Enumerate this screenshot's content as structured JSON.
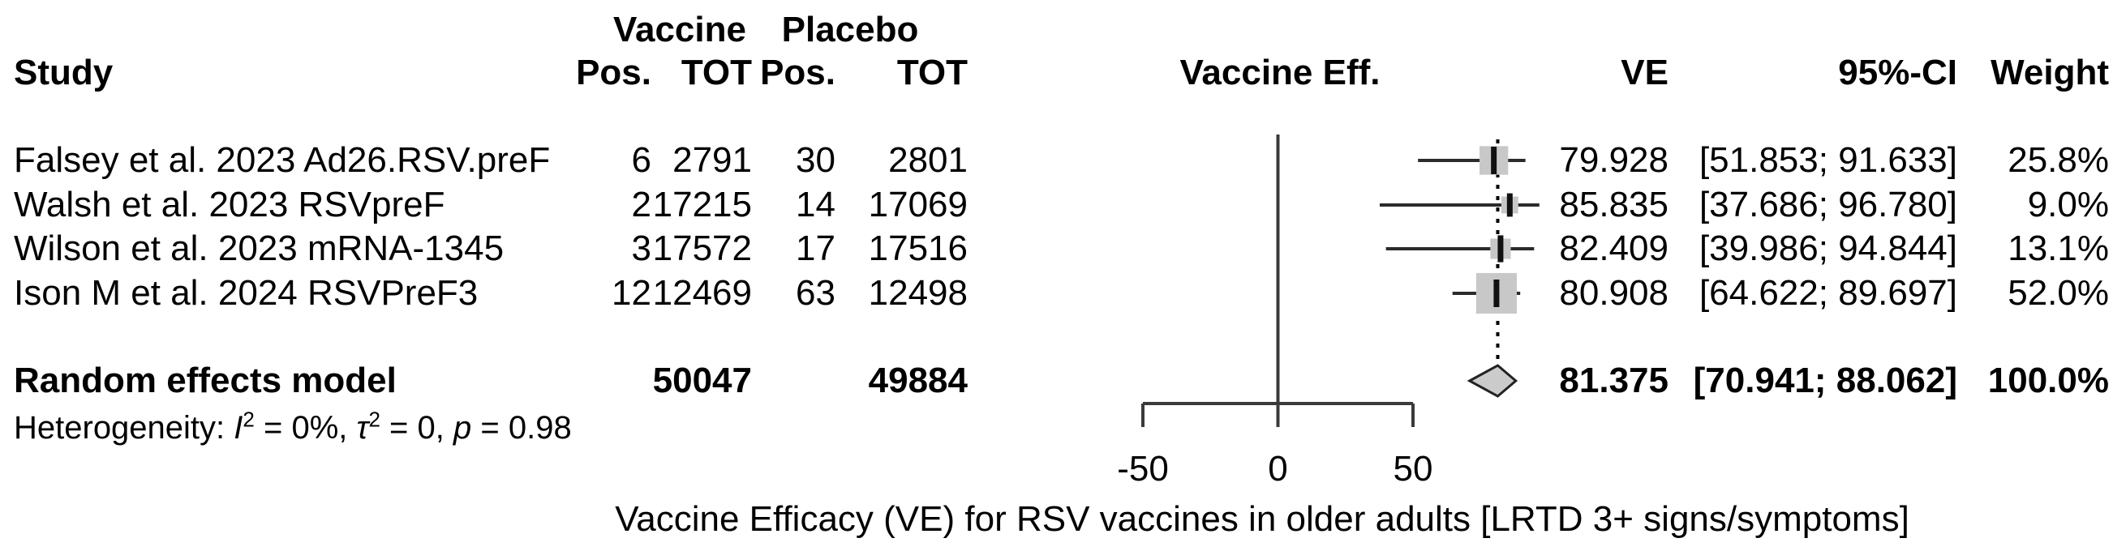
{
  "table": {
    "study_header": "Study",
    "group_headers": {
      "vaccine": "Vaccine",
      "placebo": "Placebo"
    },
    "col_headers": {
      "vaccine_pos": "Pos.",
      "vaccine_tot": "TOT",
      "placebo_pos": "Pos.",
      "placebo_tot": "TOT",
      "plot": "Vaccine Eff.",
      "ve": "VE",
      "ci": "95%-CI",
      "weight": "Weight"
    },
    "rows": [
      {
        "study": "Falsey et al. 2023 Ad26.RSV.preF",
        "vpos": "6",
        "vtot": "2791",
        "ppos": "30",
        "ptot": "2801",
        "ve": "79.928",
        "ci": "[51.853; 91.633]",
        "weight": "25.8%"
      },
      {
        "study": "Walsh et al. 2023 RSVpreF",
        "vpos": "2",
        "vtot": "17215",
        "ppos": "14",
        "ptot": "17069",
        "ve": "85.835",
        "ci": "[37.686; 96.780]",
        "weight": "9.0%"
      },
      {
        "study": "Wilson et al. 2023 mRNA-1345",
        "vpos": "3",
        "vtot": "17572",
        "ppos": "17",
        "ptot": "17516",
        "ve": "82.409",
        "ci": "[39.986; 94.844]",
        "weight": "13.1%"
      },
      {
        "study": "Ison M et al. 2024 RSVPreF3",
        "vpos": "12",
        "vtot": "12469",
        "ppos": "63",
        "ptot": "12498",
        "ve": "80.908",
        "ci": "[64.622; 89.697]",
        "weight": "52.0%"
      }
    ],
    "summary_row": {
      "label": "Random effects model",
      "vtot": "50047",
      "ptot": "49884",
      "ve": "81.375",
      "ci": "[70.941; 88.062]",
      "weight": "100.0%"
    },
    "heterogeneity_html": "Heterogeneity: <i>I</i><sup>2</sup> = 0%, <i>τ</i><sup>2</sup> = 0, <i>p</i> = 0.98"
  },
  "chart_data": {
    "type": "forest",
    "title": "",
    "xlabel": "Vaccine Efficacy (VE) for RSV vaccines in older adults [LRTD 3+ signs/symptoms]",
    "xlim": [
      -50,
      50
    ],
    "xticks": [
      -50,
      0,
      50
    ],
    "zero_line": 0,
    "pooled_reference_line": 81.375,
    "studies": [
      {
        "name": "Falsey et al. 2023 Ad26.RSV.preF",
        "ve": 79.928,
        "ci_low": 51.853,
        "ci_high": 91.633,
        "weight_pct": 25.8
      },
      {
        "name": "Walsh et al. 2023 RSVpreF",
        "ve": 85.835,
        "ci_low": 37.686,
        "ci_high": 96.78,
        "weight_pct": 9.0
      },
      {
        "name": "Wilson et al. 2023 mRNA-1345",
        "ve": 82.409,
        "ci_low": 39.986,
        "ci_high": 94.844,
        "weight_pct": 13.1
      },
      {
        "name": "Ison M et al. 2024 RSVPreF3",
        "ve": 80.908,
        "ci_low": 64.622,
        "ci_high": 89.697,
        "weight_pct": 52.0
      }
    ],
    "summary": {
      "name": "Random effects model",
      "ve": 81.375,
      "ci_low": 70.941,
      "ci_high": 88.062,
      "weight_pct": 100.0,
      "heterogeneity": {
        "I2": "0%",
        "tau2": "0",
        "p": "0.98"
      }
    }
  },
  "colors": {
    "square_fill": "#c8c8c8",
    "diamond_fill": "#cbcbcb",
    "diamond_stroke": "#222222",
    "ci_line": "#2b2b2b",
    "axis_line": "#3a3a3a",
    "marker_tick": "#111111",
    "text": "#000000"
  }
}
